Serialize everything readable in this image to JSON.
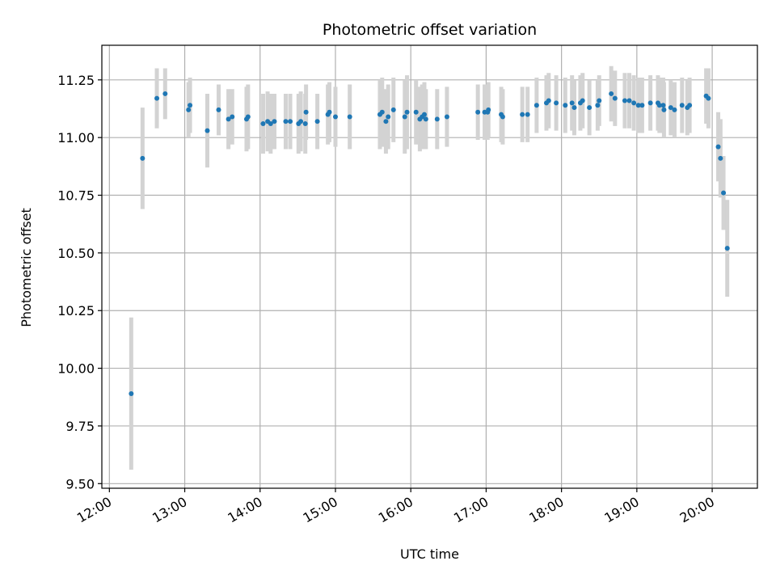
{
  "chart_data": {
    "type": "scatter",
    "title": "Photometric offset variation",
    "xlabel": "UTC time",
    "ylabel": "Photometric offset",
    "x_unit": "UTC hour",
    "xlim": [
      11.9,
      20.6
    ],
    "ylim": [
      9.48,
      11.4
    ],
    "grid": true,
    "x_ticks": [
      {
        "value": 12,
        "label": "12:00"
      },
      {
        "value": 13,
        "label": "13:00"
      },
      {
        "value": 14,
        "label": "14:00"
      },
      {
        "value": 15,
        "label": "15:00"
      },
      {
        "value": 16,
        "label": "16:00"
      },
      {
        "value": 17,
        "label": "17:00"
      },
      {
        "value": 18,
        "label": "18:00"
      },
      {
        "value": 19,
        "label": "19:00"
      },
      {
        "value": 20,
        "label": "20:00"
      }
    ],
    "y_ticks": [
      {
        "value": 9.5,
        "label": "9.50"
      },
      {
        "value": 9.75,
        "label": "9.75"
      },
      {
        "value": 10.0,
        "label": "10.00"
      },
      {
        "value": 10.25,
        "label": "10.25"
      },
      {
        "value": 10.5,
        "label": "10.50"
      },
      {
        "value": 10.75,
        "label": "10.75"
      },
      {
        "value": 11.0,
        "label": "11.00"
      },
      {
        "value": 11.25,
        "label": "11.25"
      }
    ],
    "colors": {
      "points": "#1f77b4",
      "errorbars": "#d3d3d3",
      "grid": "#b0b0b0"
    },
    "series": [
      {
        "x": [
          12.29,
          12.44,
          12.63,
          12.74,
          13.05,
          13.07,
          13.3,
          13.45,
          13.58,
          13.63,
          13.82,
          13.84,
          14.04,
          14.1,
          14.14,
          14.19,
          14.34,
          14.4,
          14.51,
          14.54,
          14.6,
          14.61,
          14.76,
          14.9,
          14.92,
          15.0,
          15.19,
          15.59,
          15.62,
          15.67,
          15.7,
          15.77,
          15.92,
          15.95,
          16.07,
          16.12,
          16.15,
          16.18,
          16.2,
          16.35,
          16.48,
          16.89,
          16.98,
          17.02,
          17.03,
          17.2,
          17.22,
          17.48,
          17.55,
          17.67,
          17.8,
          17.83,
          17.93,
          18.05,
          18.14,
          18.17,
          18.25,
          18.28,
          18.37,
          18.48,
          18.5,
          18.66,
          18.71,
          18.84,
          18.9,
          18.96,
          19.02,
          19.07,
          19.18,
          19.28,
          19.3,
          19.35,
          19.36,
          19.45,
          19.5,
          19.6,
          19.67,
          19.7,
          19.92,
          19.95,
          20.08,
          20.11,
          20.15,
          20.2
        ],
        "y": [
          9.89,
          10.91,
          11.17,
          11.19,
          11.12,
          11.14,
          11.03,
          11.12,
          11.08,
          11.09,
          11.08,
          11.09,
          11.06,
          11.07,
          11.06,
          11.07,
          11.07,
          11.07,
          11.06,
          11.07,
          11.06,
          11.11,
          11.07,
          11.1,
          11.11,
          11.09,
          11.09,
          11.1,
          11.11,
          11.07,
          11.09,
          11.12,
          11.09,
          11.11,
          11.11,
          11.08,
          11.09,
          11.1,
          11.08,
          11.08,
          11.09,
          11.11,
          11.11,
          11.11,
          11.12,
          11.1,
          11.09,
          11.1,
          11.1,
          11.14,
          11.15,
          11.16,
          11.15,
          11.14,
          11.15,
          11.13,
          11.15,
          11.16,
          11.13,
          11.14,
          11.16,
          11.19,
          11.17,
          11.16,
          11.16,
          11.15,
          11.14,
          11.14,
          11.15,
          11.15,
          11.14,
          11.14,
          11.12,
          11.13,
          11.12,
          11.14,
          11.13,
          11.14,
          11.18,
          11.17,
          10.96,
          10.91,
          10.76,
          10.52
        ],
        "yerr": [
          0.33,
          0.22,
          0.13,
          0.11,
          0.12,
          0.12,
          0.16,
          0.11,
          0.13,
          0.12,
          0.14,
          0.14,
          0.13,
          0.13,
          0.13,
          0.12,
          0.12,
          0.12,
          0.13,
          0.13,
          0.13,
          0.12,
          0.12,
          0.13,
          0.13,
          0.13,
          0.14,
          0.15,
          0.15,
          0.14,
          0.14,
          0.14,
          0.16,
          0.16,
          0.14,
          0.14,
          0.14,
          0.14,
          0.13,
          0.13,
          0.13,
          0.12,
          0.12,
          0.12,
          0.12,
          0.12,
          0.12,
          0.12,
          0.12,
          0.12,
          0.12,
          0.12,
          0.12,
          0.12,
          0.12,
          0.12,
          0.12,
          0.12,
          0.12,
          0.11,
          0.11,
          0.12,
          0.12,
          0.12,
          0.12,
          0.12,
          0.12,
          0.12,
          0.12,
          0.12,
          0.12,
          0.12,
          0.12,
          0.12,
          0.12,
          0.12,
          0.12,
          0.12,
          0.12,
          0.13,
          0.15,
          0.17,
          0.16,
          0.21
        ]
      }
    ]
  }
}
